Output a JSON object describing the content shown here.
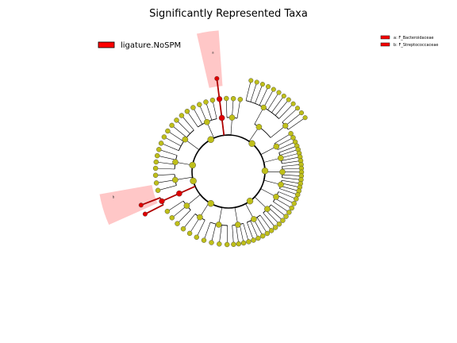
{
  "chart_data": {
    "type": "cladogram",
    "title": "Significantly Represented Taxa",
    "class_legend": {
      "label": "ligature.NoSPM",
      "color": "#ff0000"
    },
    "highlighted_taxa": [
      {
        "key": "a",
        "label": "a: F_Bacteroidaceae",
        "color": "#ff0000"
      },
      {
        "key": "b",
        "label": "b: F_Streptococcaceae",
        "color": "#ff0000"
      }
    ],
    "node_color": "#bfbf1a",
    "highlight_node_color": "#e00000",
    "highlight_shade_color": "#ff9999"
  }
}
